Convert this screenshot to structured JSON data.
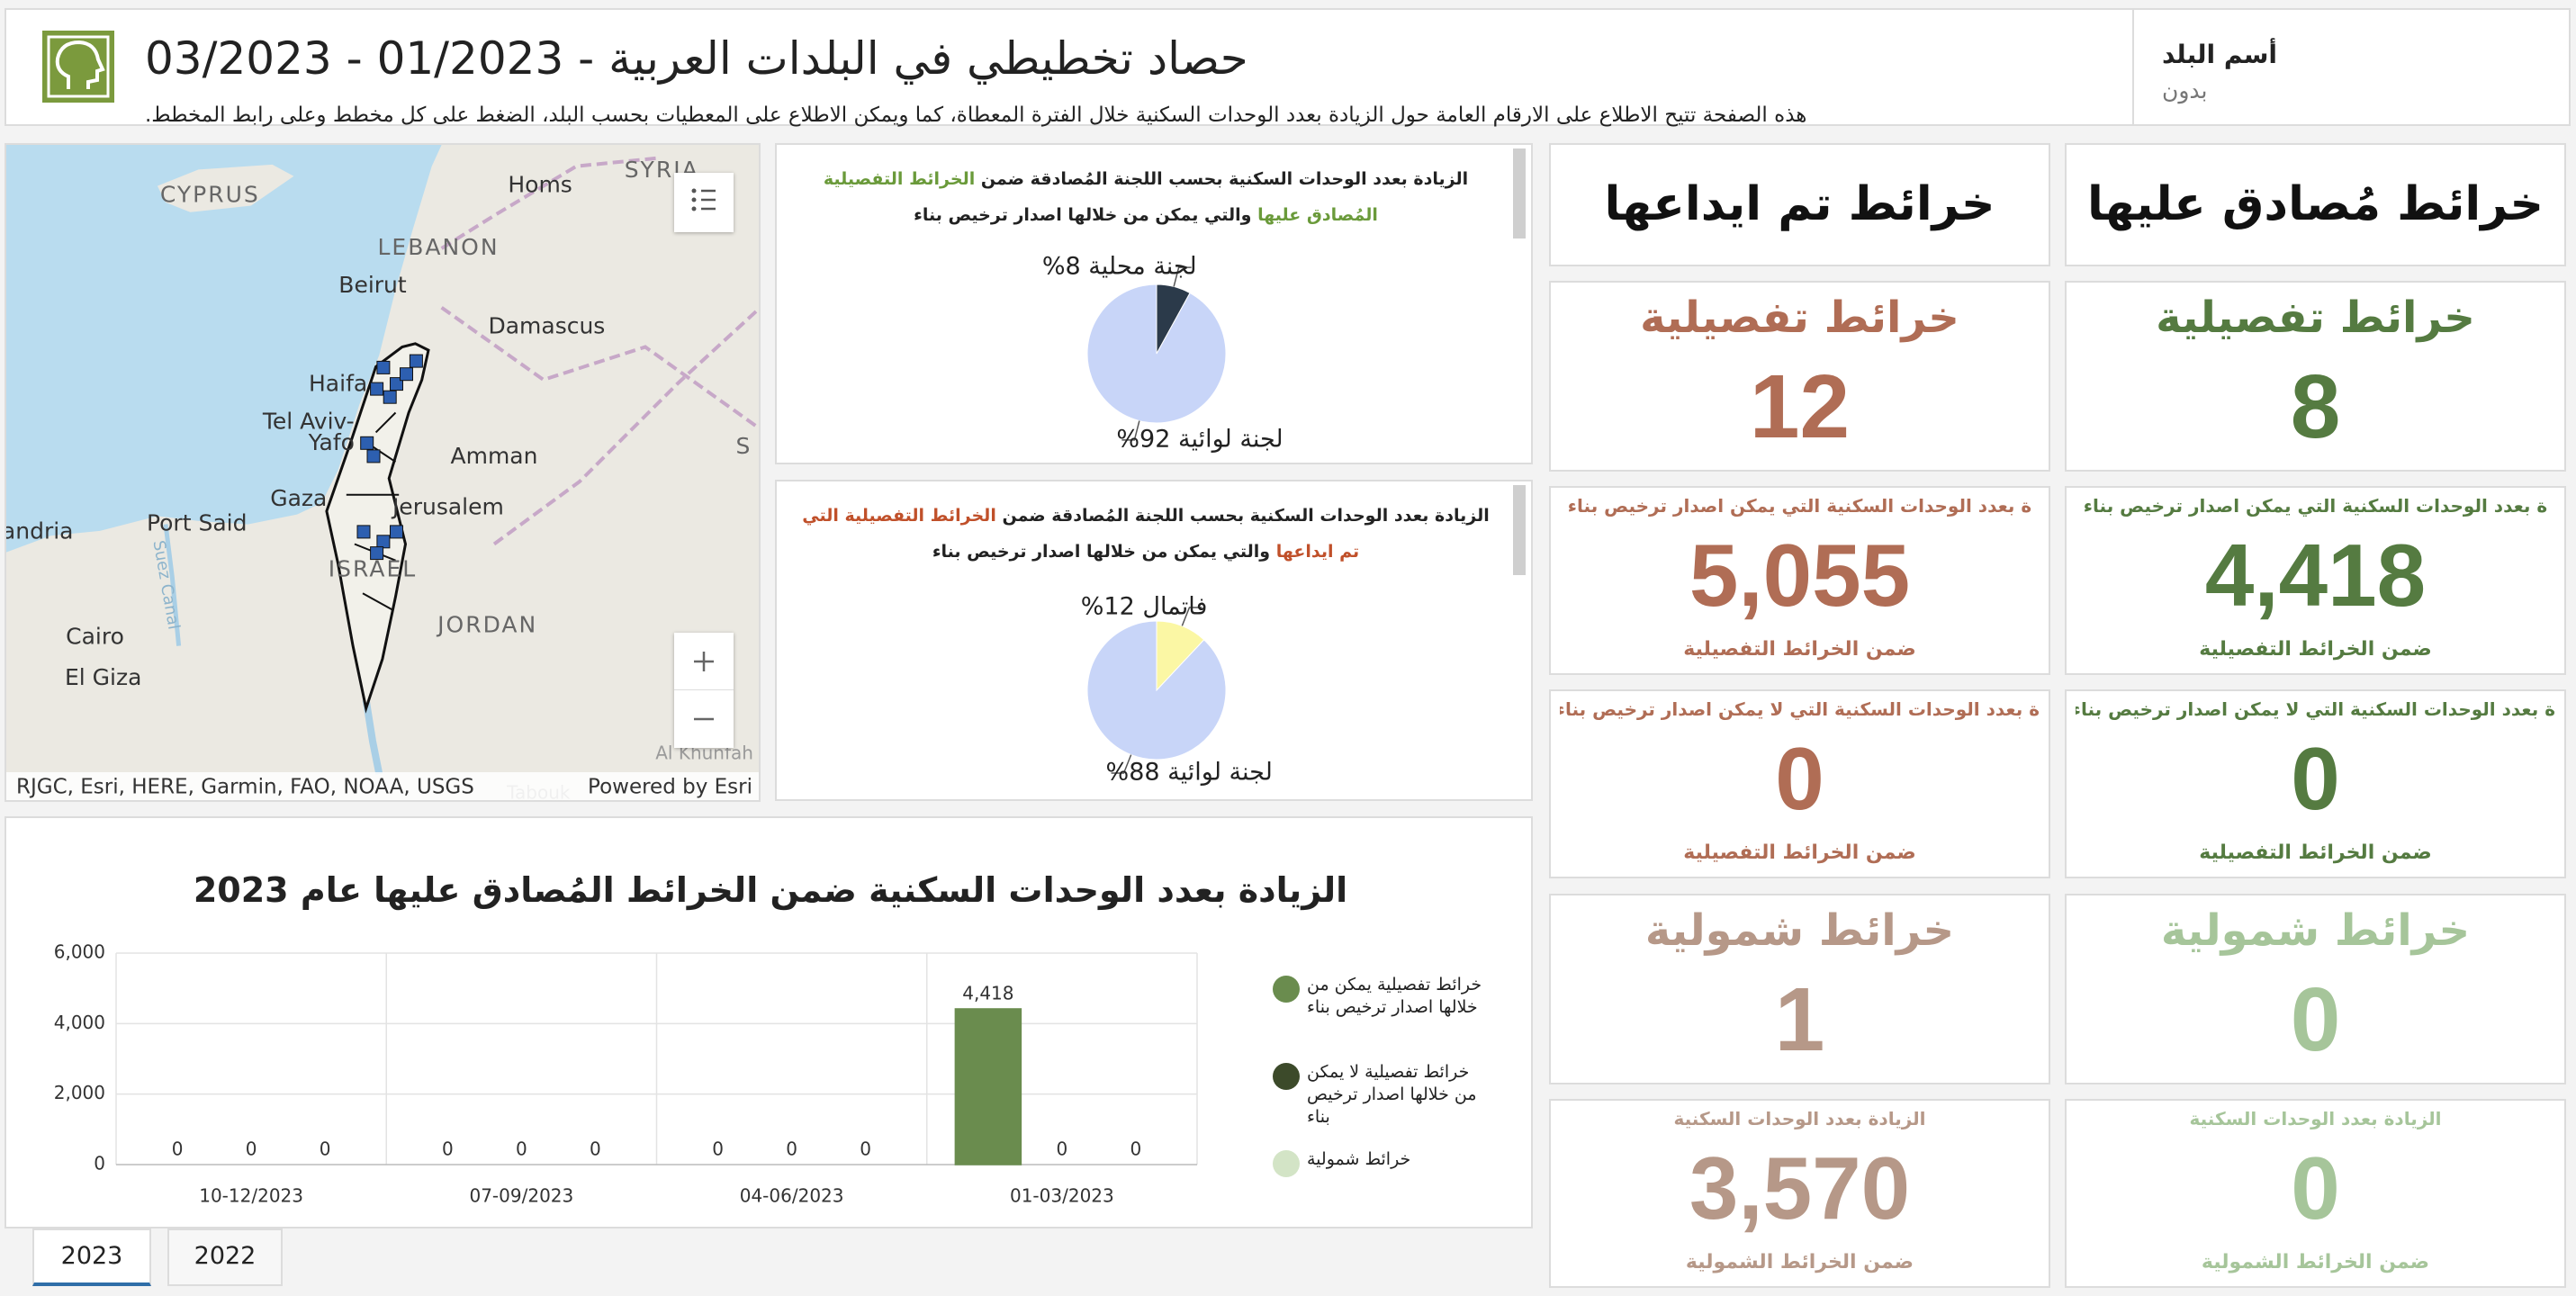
{
  "header": {
    "title": "حصاد تخطيطي في البلدات العربية - 01/2023 - 03/2023",
    "subtitle": "هذه الصفحة تتيح الاطلاع على الارقام العامة حول الزيادة بعدد الوحدات السكنية خلال الفترة المعطاة، كما ويمكن الاطلاع على المعطيات بحسب البلد، الضغط على كل مخطط وعلى رابط المخطط.",
    "country_label": "أسم البلد",
    "country_value": "بدون"
  },
  "map": {
    "place_labels": [
      "CYPRUS",
      "SYRIA",
      "Homs",
      "LEBANON",
      "Beirut",
      "Damascus",
      "Haifa",
      "Tel Aviv-",
      "Yafo",
      "Amman",
      "Gaza",
      "Jerusalem",
      "JORDAN",
      "Port Said",
      "andria",
      "Cairo",
      "El Giza",
      "ISRAEL",
      "Al Khunfah",
      "Tabouk",
      "Suez Canal",
      "S"
    ],
    "attribution": "RJGC, Esri, HERE, Garmin, FAO, NOAA, USGS",
    "powered_by": "Powered by Esri"
  },
  "chart_data": [
    {
      "type": "pie",
      "title": [
        "الزيادة بعدد الوحدات السكنية بحسب اللجنة المُصادقة ضمن",
        "الخرائط التفصيلية المُصادق عليها",
        "والتي يمكن من خلالها اصدار ترخيص بناء"
      ],
      "title_colors": [
        "#222222",
        "#6a9a3a",
        "#222222"
      ],
      "categories": [
        "لجنة محلية",
        "لجنة لوائية"
      ],
      "values": [
        8,
        92
      ],
      "value_labels": [
        "لجنة محلية 8%",
        "لجنة لوائية 92%"
      ],
      "colors": [
        "#2b3a4a",
        "#c8d5f8"
      ]
    },
    {
      "type": "pie",
      "title": [
        "الزيادة بعدد الوحدات السكنية بحسب اللجنة المُصادقة ضمن",
        "الخرائط التفصيلية التي تم ايداعها",
        "والتي يمكن من خلالها اصدار ترخيص بناء"
      ],
      "title_colors": [
        "#222222",
        "#c0502a",
        "#222222"
      ],
      "categories": [
        "فاتمال",
        "لجنة لوائية"
      ],
      "values": [
        12,
        88
      ],
      "value_labels": [
        "فاتمال 12%",
        "لجنة لوائية 88%"
      ],
      "colors": [
        "#fbf7a4",
        "#c8d5f8"
      ]
    },
    {
      "type": "bar",
      "title": "الزيادة بعدد الوحدات السكنية ضمن الخرائط المُصادق عليها عام 2023",
      "categories": [
        "10-12/2023",
        "07-09/2023",
        "04-06/2023",
        "01-03/2023"
      ],
      "series": [
        {
          "name": "خرائط تفصيلية يمكن من خلالها اصدار ترخيص بناء",
          "color": "#6a8c4e",
          "values": [
            0,
            0,
            0,
            4418
          ],
          "value_labels": [
            "0",
            "0",
            "0",
            "4,418"
          ]
        },
        {
          "name": "خرائط تفصيلية لا يمكن من خلالها اصدار ترخيص بناء",
          "color": "#3c4a2a",
          "values": [
            0,
            0,
            0,
            0
          ]
        },
        {
          "name": "خرائط شمولية",
          "color": "#d3e4c6",
          "values": [
            0,
            0,
            0,
            0
          ]
        }
      ],
      "ylim": [
        0,
        6000
      ],
      "yticks": [
        0,
        {
          "value": 2000,
          "label": "2,000"
        },
        {
          "value": 4000,
          "label": "4,000"
        },
        {
          "value": 6000,
          "label": "6,000"
        }
      ],
      "grid": true,
      "legend": "right"
    }
  ],
  "cards": [
    {
      "heading": "خرائط مُصادق عليها",
      "colors": [
        "#557b41",
        "#557b41",
        "#557b41",
        "#a6c59a",
        "#a6c59a"
      ],
      "tiles": [
        {
          "title": "خرائط تفصيلية",
          "value": "8"
        },
        {
          "top": "ة بعدد الوحدات السكنية التي يمكن اصدار ترخيص بناء",
          "value": "4,418",
          "bottom": "ضمن الخرائط التفصيلية"
        },
        {
          "top": "ة بعدد الوحدات السكنية التي لا يمكن اصدار ترخيص بناء",
          "value": "0",
          "bottom": "ضمن الخرائط التفصيلية"
        },
        {
          "title": "خرائط شمولية",
          "value": "0"
        },
        {
          "top": "الزيادة بعدد الوحدات السكنية",
          "value": "0",
          "bottom": "ضمن الخرائط الشمولية"
        }
      ]
    },
    {
      "heading": "خرائط تم ايداعها",
      "colors": [
        "#b06d55",
        "#b06d55",
        "#b06d55",
        "#b69888",
        "#b69888"
      ],
      "tiles": [
        {
          "title": "خرائط تفصيلية",
          "value": "12"
        },
        {
          "top": "ة بعدد الوحدات السكنية التي يمكن اصدار ترخيص بناء",
          "value": "5,055",
          "bottom": "ضمن الخرائط التفصيلية"
        },
        {
          "top": "ة بعدد الوحدات السكنية التي لا يمكن اصدار ترخيص بناء",
          "value": "0",
          "bottom": "ضمن الخرائط التفصيلية"
        },
        {
          "title": "خرائط شمولية",
          "value": "1"
        },
        {
          "top": "الزيادة بعدد الوحدات السكنية",
          "value": "3,570",
          "bottom": "ضمن الخرائط الشمولية"
        }
      ]
    }
  ],
  "tabs": [
    "2023",
    "2022"
  ]
}
